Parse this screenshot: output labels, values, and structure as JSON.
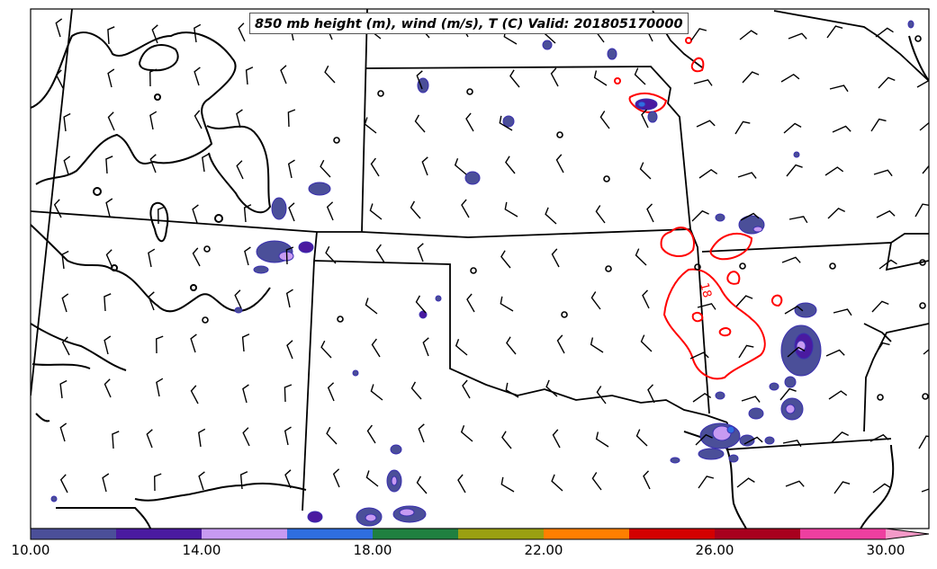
{
  "title": "850 mb height (m), wind (m/s), T (C) Valid: 201805170000",
  "contour_label": "18",
  "colorbar": {
    "colors": [
      "#4b4f99",
      "#4a1aa0",
      "#c79af2",
      "#2f6ee0",
      "#1f8040",
      "#9aa011",
      "#ff7f00",
      "#d40000",
      "#a8001e",
      "#ee3fa0"
    ],
    "extend_color": "#f49ac8",
    "tick_labels": [
      "10.00",
      "14.00",
      "18.00",
      "22.00",
      "26.00",
      "30.00"
    ]
  },
  "styles": {
    "isotherm_color": "#ff0000",
    "boundary_color": "#000000",
    "precip_outline": "#3a2fb0"
  }
}
